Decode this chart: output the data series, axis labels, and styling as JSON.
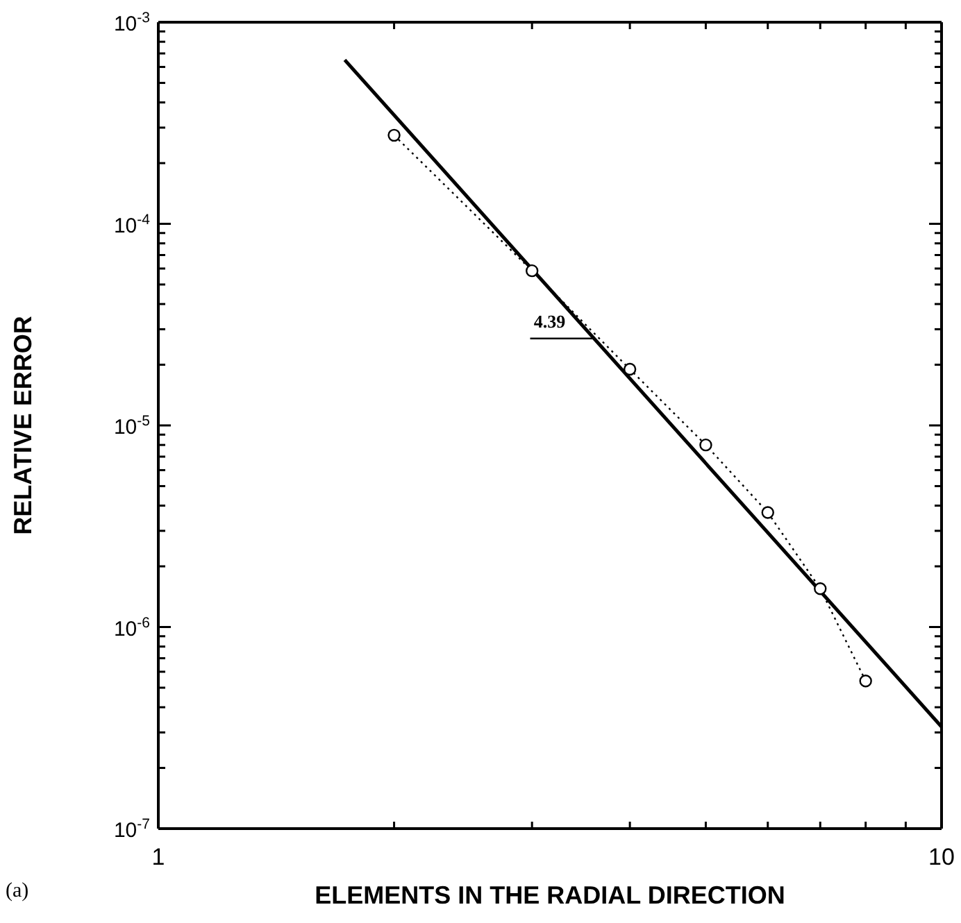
{
  "chart_data": {
    "type": "line",
    "xlabel": "ELEMENTS IN THE RADIAL DIRECTION",
    "ylabel": "RELATIVE ERROR",
    "log": "xy",
    "xlim": [
      1,
      10
    ],
    "ylim": [
      1e-07,
      0.001
    ],
    "xticks": [
      1,
      {
        "value": 2,
        "label": null
      },
      {
        "value": 3,
        "label": null
      },
      {
        "value": 4,
        "label": null
      },
      {
        "value": 5,
        "label": null
      },
      {
        "value": 6,
        "label": null
      },
      {
        "value": 7,
        "label": null
      },
      {
        "value": 8,
        "label": null
      },
      {
        "value": 9,
        "label": null
      },
      10
    ],
    "yticks": [
      {
        "value": 1e-07,
        "label": "10$^{-7}$"
      },
      {
        "value": 2e-07,
        "label": null
      },
      {
        "value": 3e-07,
        "label": null
      },
      {
        "value": 4e-07,
        "label": null
      },
      {
        "value": 5e-07,
        "label": null
      },
      {
        "value": 6e-07,
        "label": null
      },
      {
        "value": 7e-07,
        "label": null
      },
      {
        "value": 8e-07,
        "label": null
      },
      {
        "value": 9e-07,
        "label": null
      },
      {
        "value": 1e-06,
        "label": "10$^{-6}$"
      },
      {
        "value": 2e-06,
        "label": null
      },
      {
        "value": 3e-06,
        "label": null
      },
      {
        "value": 4e-06,
        "label": null
      },
      {
        "value": 5e-06,
        "label": null
      },
      {
        "value": 6e-06,
        "label": null
      },
      {
        "value": 7e-06,
        "label": null
      },
      {
        "value": 8e-06,
        "label": null
      },
      {
        "value": 9e-06,
        "label": null
      },
      {
        "value": 1e-05,
        "label": "10$^{-5}$"
      },
      {
        "value": 2e-05,
        "label": null
      },
      {
        "value": 3e-05,
        "label": null
      },
      {
        "value": 4e-05,
        "label": null
      },
      {
        "value": 5e-05,
        "label": null
      },
      {
        "value": 6e-05,
        "label": null
      },
      {
        "value": 7e-05,
        "label": null
      },
      {
        "value": 8e-05,
        "label": null
      },
      {
        "value": 9e-05,
        "label": null
      },
      {
        "value": 0.0001,
        "label": "10$^{-4}$"
      },
      {
        "value": 0.0002,
        "label": null
      },
      {
        "value": 0.0003,
        "label": null
      },
      {
        "value": 0.0004,
        "label": null
      },
      {
        "value": 0.0005,
        "label": null
      },
      {
        "value": 0.0006,
        "label": null
      },
      {
        "value": 0.0007,
        "label": null
      },
      {
        "value": 0.0008,
        "label": null
      },
      {
        "value": 0.0009,
        "label": null
      },
      {
        "value": 0.001,
        "label": "10$^{-3}$"
      }
    ],
    "series": [
      {
        "color": "#000000",
        "marker": "circle",
        "line_style": "dotted",
        "x": [
          2,
          3,
          4,
          5,
          6,
          7,
          8
        ],
        "values": [
          0.000275,
          5.85e-05,
          1.9e-05,
          8e-06,
          3.7e-06,
          1.55e-06,
          5.4e-07
        ]
      },
      {
        "color": "#000000",
        "marker": "none",
        "line_style": "solid",
        "x": [
          1.73,
          10
        ],
        "values": [
          0.00065,
          3.2e-07
        ]
      }
    ],
    "annotations": [
      {
        "text": "4.39",
        "x": 3.6,
        "y": 2.7e-05
      },
      "(a)"
    ]
  }
}
